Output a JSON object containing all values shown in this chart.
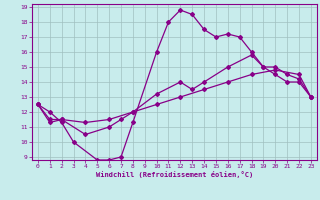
{
  "xlabel": "Windchill (Refroidissement éolien,°C)",
  "bg_color": "#c8ecec",
  "line_color": "#880088",
  "grid_color": "#a0c0c0",
  "xlim": [
    -0.5,
    23.5
  ],
  "ylim": [
    8.8,
    19.2
  ],
  "yticks": [
    9,
    10,
    11,
    12,
    13,
    14,
    15,
    16,
    17,
    18,
    19
  ],
  "xticks": [
    0,
    1,
    2,
    3,
    4,
    5,
    6,
    7,
    8,
    9,
    10,
    11,
    12,
    13,
    14,
    15,
    16,
    17,
    18,
    19,
    20,
    21,
    22,
    23
  ],
  "line1_x": [
    0,
    1,
    2,
    3,
    5,
    6,
    7,
    8,
    10,
    11,
    12,
    13,
    14,
    15,
    16,
    17,
    18,
    19,
    20,
    21,
    22,
    23
  ],
  "line1_y": [
    12.5,
    12.0,
    11.3,
    10.0,
    8.8,
    8.8,
    9.0,
    11.3,
    16.0,
    18.0,
    18.8,
    18.5,
    17.5,
    17.0,
    17.2,
    17.0,
    16.0,
    15.0,
    14.5,
    14.0,
    14.0,
    13.0
  ],
  "line2_x": [
    0,
    1,
    2,
    4,
    6,
    7,
    8,
    10,
    12,
    13,
    14,
    16,
    18,
    19,
    20,
    21,
    22,
    23
  ],
  "line2_y": [
    12.5,
    11.3,
    11.5,
    10.5,
    11.0,
    11.5,
    12.0,
    13.2,
    14.0,
    13.5,
    14.0,
    15.0,
    15.8,
    15.0,
    15.0,
    14.5,
    14.2,
    13.0
  ],
  "line3_x": [
    0,
    1,
    2,
    4,
    6,
    8,
    10,
    12,
    14,
    16,
    18,
    20,
    22,
    23
  ],
  "line3_y": [
    12.5,
    11.5,
    11.5,
    11.3,
    11.5,
    12.0,
    12.5,
    13.0,
    13.5,
    14.0,
    14.5,
    14.8,
    14.5,
    13.0
  ]
}
